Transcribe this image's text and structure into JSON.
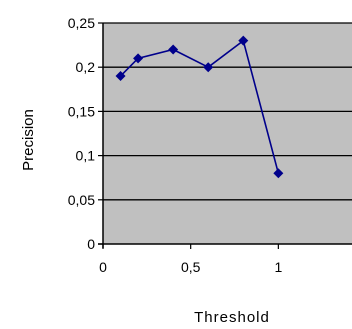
{
  "chart_data": {
    "type": "line",
    "title": "",
    "xlabel": "Threshold",
    "ylabel": "Precision",
    "xlim": [
      0,
      1.42
    ],
    "ylim": [
      0,
      0.25
    ],
    "xticks": [
      "0",
      "0,5",
      "1"
    ],
    "xtick_values": [
      0,
      0.5,
      1
    ],
    "yticks": [
      "0",
      "0,05",
      "0,1",
      "0,15",
      "0,2",
      "0,25"
    ],
    "ytick_values": [
      0,
      0.05,
      0.1,
      0.15,
      0.2,
      0.25
    ],
    "grid": true,
    "legend": "none",
    "colors": {
      "plot_background": "#c0c0c0",
      "series_line": "#00008b",
      "gridline": "#000000"
    },
    "series": [
      {
        "x": [
          0.1,
          0.2,
          0.4,
          0.6,
          0.8,
          1.0
        ],
        "y": [
          0.19,
          0.21,
          0.22,
          0.2,
          0.23,
          0.08
        ]
      }
    ]
  }
}
